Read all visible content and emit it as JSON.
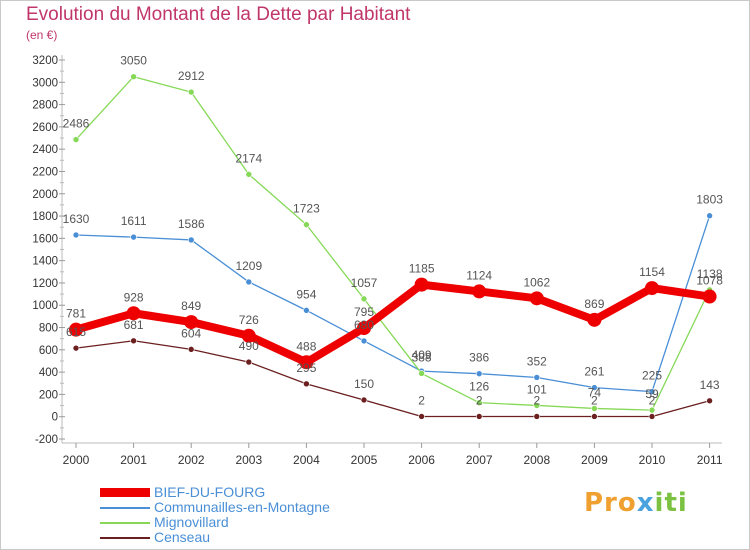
{
  "title": "Evolution du Montant de la Dette par Habitant",
  "unit_label": "(en €)",
  "logo": {
    "text_part1": "Pro",
    "text_part2": "x",
    "text_part3": "iti"
  },
  "chart_data": {
    "type": "line",
    "title": "Evolution du Montant de la Dette par Habitant",
    "ylabel": "(en €)",
    "xlabel": "",
    "x": [
      "2000",
      "2001",
      "2002",
      "2003",
      "2004",
      "2005",
      "2006",
      "2007",
      "2008",
      "2009",
      "2010",
      "2011"
    ],
    "ylim": [
      -200,
      3200
    ],
    "yticks": [
      -200,
      0,
      200,
      400,
      600,
      800,
      1000,
      1200,
      1400,
      1600,
      1800,
      2000,
      2200,
      2400,
      2600,
      2800,
      3000,
      3200
    ],
    "grid": false,
    "legend_position": "bottom-left",
    "series": [
      {
        "name": "BIEF-DU-FOURG",
        "color": "#ee0000",
        "emphasis": true,
        "values": [
          781,
          928,
          849,
          726,
          488,
          795,
          1185,
          1124,
          1062,
          869,
          1154,
          1078
        ]
      },
      {
        "name": "Communailles-en-Montagne",
        "color": "#4a8fd6",
        "emphasis": false,
        "values": [
          1630,
          1611,
          1586,
          1209,
          954,
          680,
          409,
          386,
          352,
          261,
          225,
          1803
        ]
      },
      {
        "name": "Mignovillard",
        "color": "#86d957",
        "emphasis": false,
        "values": [
          2486,
          3050,
          2912,
          2174,
          1723,
          1057,
          388,
          126,
          101,
          74,
          59,
          1138
        ]
      },
      {
        "name": "Censeau",
        "color": "#6b1f1f",
        "emphasis": false,
        "values": [
          615,
          681,
          604,
          490,
          295,
          150,
          2,
          2,
          2,
          2,
          2,
          143
        ]
      }
    ]
  }
}
